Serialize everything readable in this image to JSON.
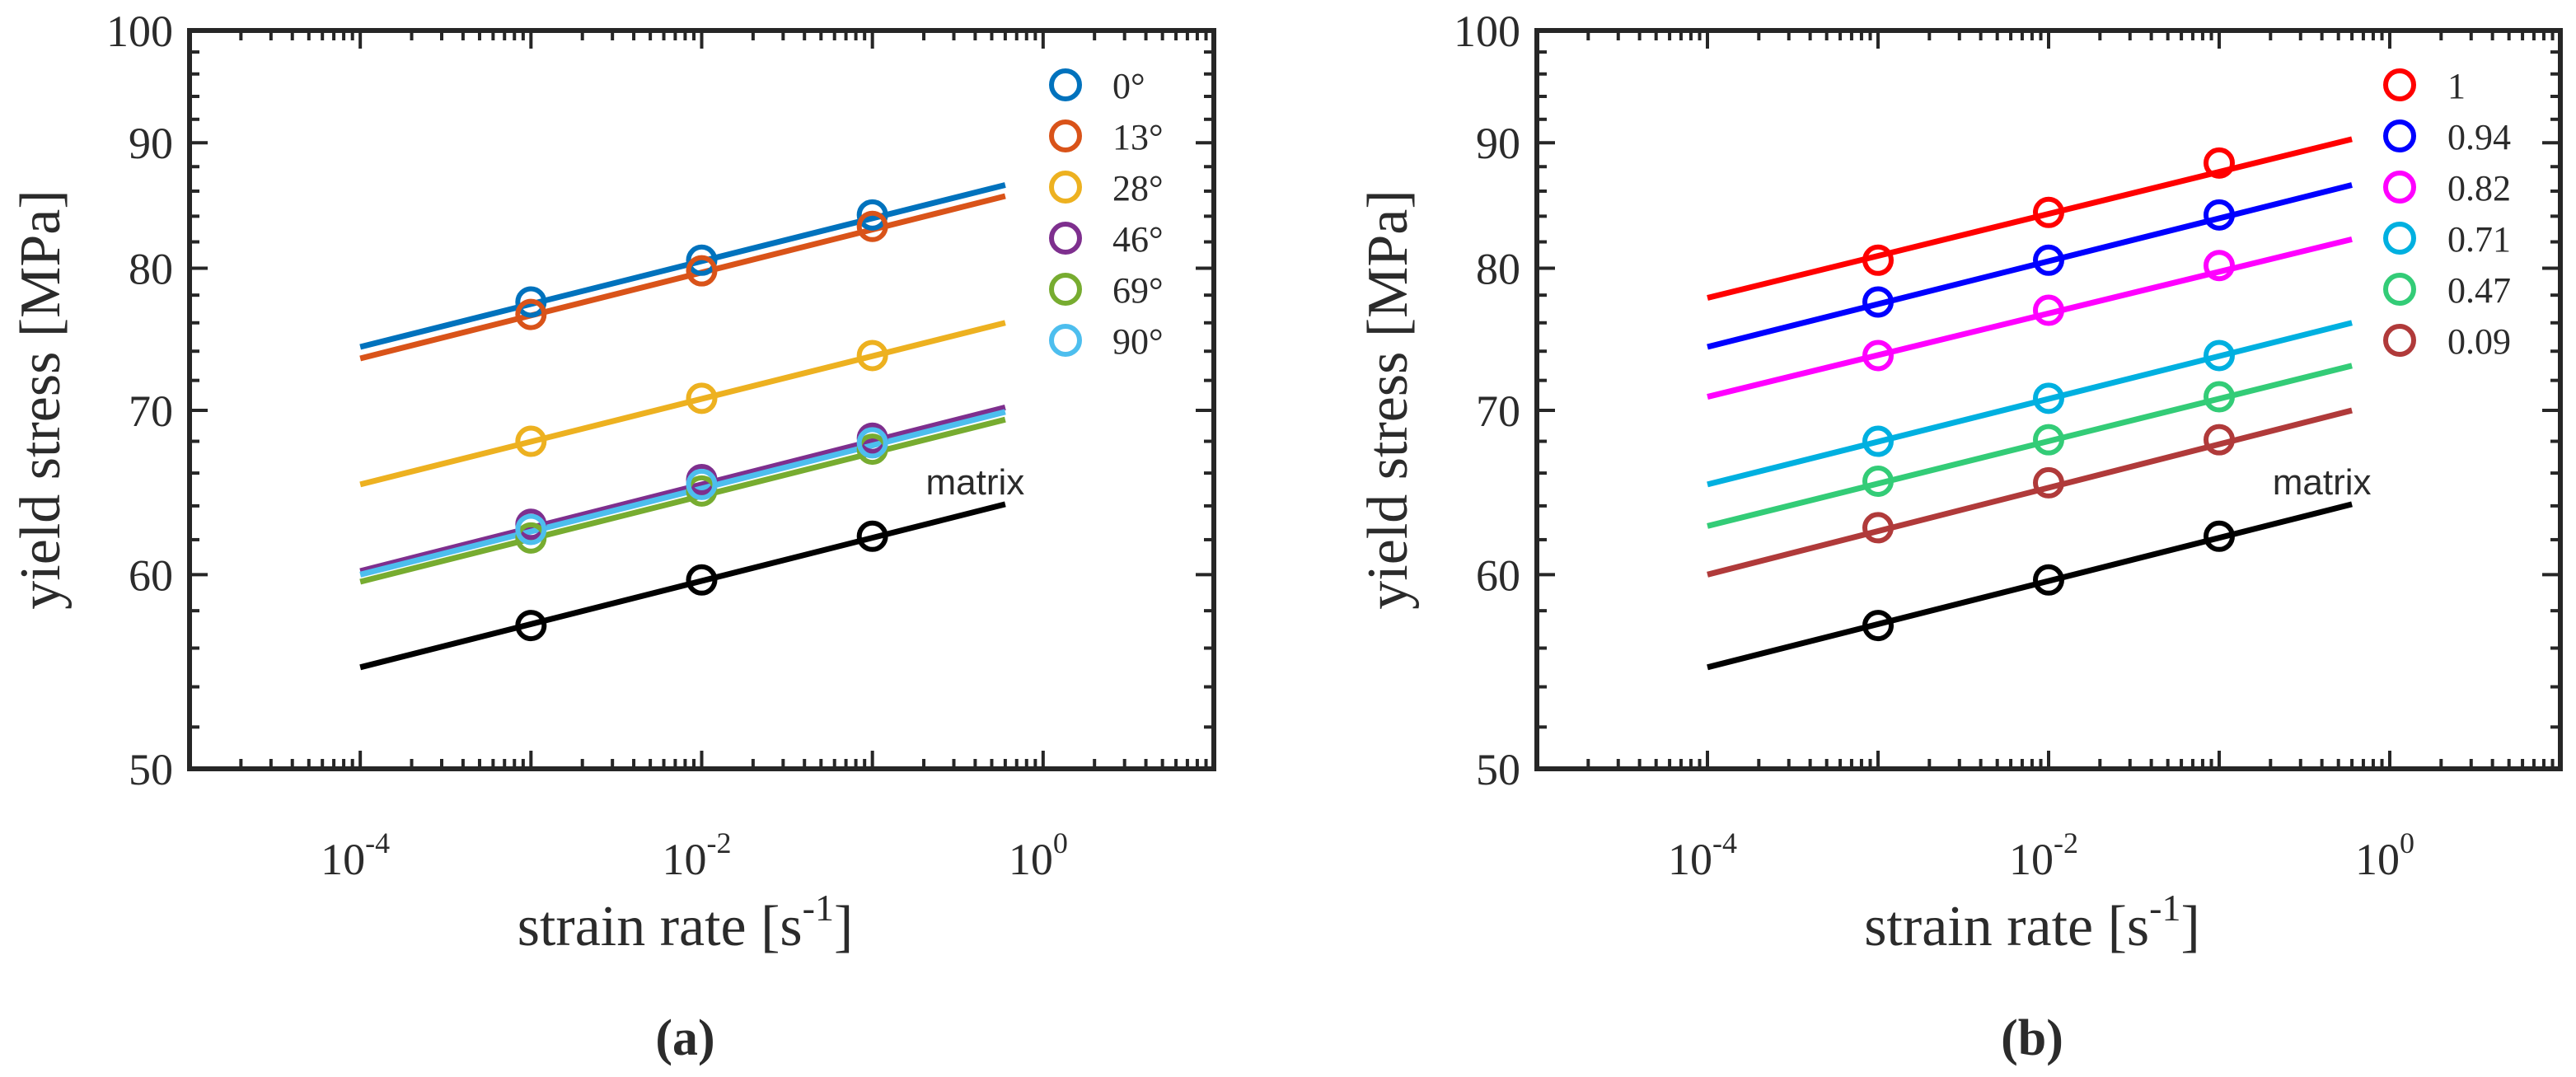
{
  "chart_data": [
    {
      "type": "line",
      "panel_label": "(a)",
      "xscale": "log",
      "yscale": "log",
      "xlabel": "strain rate [s",
      "xlabel_sup": "-1",
      "xlabel_end": "]",
      "ylabel": "yield stress [MPa]",
      "xlim": [
        1e-05,
        10
      ],
      "ylim": [
        50,
        100
      ],
      "xticks": [
        {
          "base": "10",
          "exp": "-4",
          "value": 0.0001
        },
        {
          "base": "10",
          "exp": "-2",
          "value": 0.01
        },
        {
          "base": "10",
          "exp": "0",
          "value": 1
        }
      ],
      "yticks": [
        {
          "label": "50",
          "value": 50
        },
        {
          "label": "60",
          "value": 60
        },
        {
          "label": "70",
          "value": 70
        },
        {
          "label": "80",
          "value": 80
        },
        {
          "label": "90",
          "value": 90
        },
        {
          "label": "100",
          "value": 100
        }
      ],
      "legend_position": "top-right",
      "annotation": {
        "text": "matrix",
        "x": 0.4,
        "y": 64.7
      },
      "fit_range": [
        0.0001,
        0.6
      ],
      "series": [
        {
          "name": "0°",
          "color": "#0072BD",
          "x": [
            0.001,
            0.01,
            0.1
          ],
          "y": [
            77.5,
            80.6,
            84.1
          ],
          "fit": [
            74.3,
            86.5
          ]
        },
        {
          "name": "13°",
          "color": "#D95319",
          "x": [
            0.001,
            0.01,
            0.1
          ],
          "y": [
            76.6,
            79.8,
            83.2
          ],
          "fit": [
            73.5,
            85.6
          ]
        },
        {
          "name": "28°",
          "color": "#EDB120",
          "x": [
            0.001,
            0.01,
            0.1
          ],
          "y": [
            68.0,
            70.8,
            73.7
          ],
          "fit": [
            65.3,
            76.0
          ]
        },
        {
          "name": "46°",
          "color": "#7E2F8E",
          "x": [
            0.001,
            0.01,
            0.1
          ],
          "y": [
            62.9,
            65.6,
            68.2
          ],
          "fit": [
            60.2,
            70.2
          ]
        },
        {
          "name": "69°",
          "color": "#77AC30",
          "x": [
            0.001,
            0.01,
            0.1
          ],
          "y": [
            62.1,
            64.9,
            67.5
          ],
          "fit": [
            59.6,
            69.4
          ]
        },
        {
          "name": "90°",
          "color": "#4DBEEE",
          "x": [
            0.001,
            0.01,
            0.1
          ],
          "y": [
            62.6,
            65.3,
            67.9
          ],
          "fit": [
            60.0,
            69.9
          ]
        },
        {
          "name": "matrix",
          "color": "#000000",
          "legend": false,
          "x": [
            0.001,
            0.01,
            0.1
          ],
          "y": [
            57.2,
            59.7,
            62.2
          ],
          "fit": [
            55.0,
            64.1
          ]
        }
      ]
    },
    {
      "type": "line",
      "panel_label": "(b)",
      "xscale": "log",
      "yscale": "log",
      "xlabel": "strain rate [s",
      "xlabel_sup": "-1",
      "xlabel_end": "]",
      "ylabel": "yield stress [MPa]",
      "xlim": [
        1e-05,
        10
      ],
      "ylim": [
        50,
        100
      ],
      "xticks": [
        {
          "base": "10",
          "exp": "-4",
          "value": 0.0001
        },
        {
          "base": "10",
          "exp": "-2",
          "value": 0.01
        },
        {
          "base": "10",
          "exp": "0",
          "value": 1
        }
      ],
      "yticks": [
        {
          "label": "50",
          "value": 50
        },
        {
          "label": "60",
          "value": 60
        },
        {
          "label": "70",
          "value": 70
        },
        {
          "label": "80",
          "value": 80
        },
        {
          "label": "90",
          "value": 90
        },
        {
          "label": "100",
          "value": 100
        }
      ],
      "legend_position": "top-right",
      "annotation": {
        "text": "matrix",
        "x": 0.4,
        "y": 64.7
      },
      "fit_range": [
        0.0001,
        0.6
      ],
      "series": [
        {
          "name": "1",
          "color": "#FF0000",
          "x": [
            0.001,
            0.01,
            0.1
          ],
          "y": [
            80.6,
            84.3,
            88.3
          ],
          "fit": [
            77.8,
            90.3
          ]
        },
        {
          "name": "0.94",
          "color": "#0000FF",
          "x": [
            0.001,
            0.01,
            0.1
          ],
          "y": [
            77.5,
            80.6,
            84.1
          ],
          "fit": [
            74.3,
            86.5
          ]
        },
        {
          "name": "0.82",
          "color": "#FF00FF",
          "x": [
            0.001,
            0.01,
            0.1
          ],
          "y": [
            73.7,
            76.9,
            80.2
          ],
          "fit": [
            70.9,
            82.2
          ]
        },
        {
          "name": "0.71",
          "color": "#00B0E0",
          "x": [
            0.001,
            0.01,
            0.1
          ],
          "y": [
            68.0,
            70.8,
            73.7
          ],
          "fit": [
            65.3,
            76.0
          ]
        },
        {
          "name": "0.47",
          "color": "#33CC77",
          "x": [
            0.001,
            0.01,
            0.1
          ],
          "y": [
            65.5,
            68.1,
            70.9
          ],
          "fit": [
            62.8,
            73.0
          ]
        },
        {
          "name": "0.09",
          "color": "#B03A3A",
          "x": [
            0.001,
            0.01,
            0.1
          ],
          "y": [
            62.7,
            65.4,
            68.1
          ],
          "fit": [
            60.0,
            70.0
          ]
        },
        {
          "name": "matrix",
          "color": "#000000",
          "legend": false,
          "x": [
            0.001,
            0.01,
            0.1
          ],
          "y": [
            57.2,
            59.7,
            62.2
          ],
          "fit": [
            55.0,
            64.1
          ]
        }
      ]
    }
  ]
}
